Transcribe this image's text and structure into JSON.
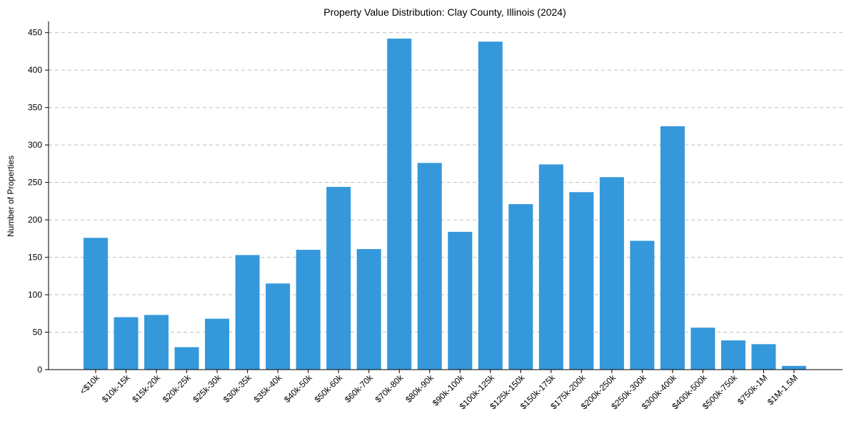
{
  "chart_data": {
    "type": "bar",
    "title": "Property Value Distribution: Clay County, Illinois (2024)",
    "xlabel": "",
    "ylabel": "Number of Properties",
    "ylim": [
      0,
      465
    ],
    "yticks": [
      0,
      50,
      100,
      150,
      200,
      250,
      300,
      350,
      400,
      450
    ],
    "grid": "y-dashed",
    "categories": [
      "<$10k",
      "$10k-15k",
      "$15k-20k",
      "$20k-25k",
      "$25k-30k",
      "$30k-35k",
      "$35k-40k",
      "$40k-50k",
      "$50k-60k",
      "$60k-70k",
      "$70k-80k",
      "$80k-90k",
      "$90k-100k",
      "$100k-125k",
      "$125k-150k",
      "$150k-175k",
      "$175k-200k",
      "$200k-250k",
      "$250k-300k",
      "$300k-400k",
      "$400k-500k",
      "$500k-750k",
      "$750k-1M",
      "$1M-1.5M"
    ],
    "values": [
      176,
      70,
      73,
      30,
      68,
      153,
      115,
      160,
      244,
      161,
      442,
      276,
      184,
      438,
      221,
      274,
      237,
      257,
      172,
      325,
      56,
      39,
      34,
      5
    ],
    "bar_color": "#3498db"
  }
}
